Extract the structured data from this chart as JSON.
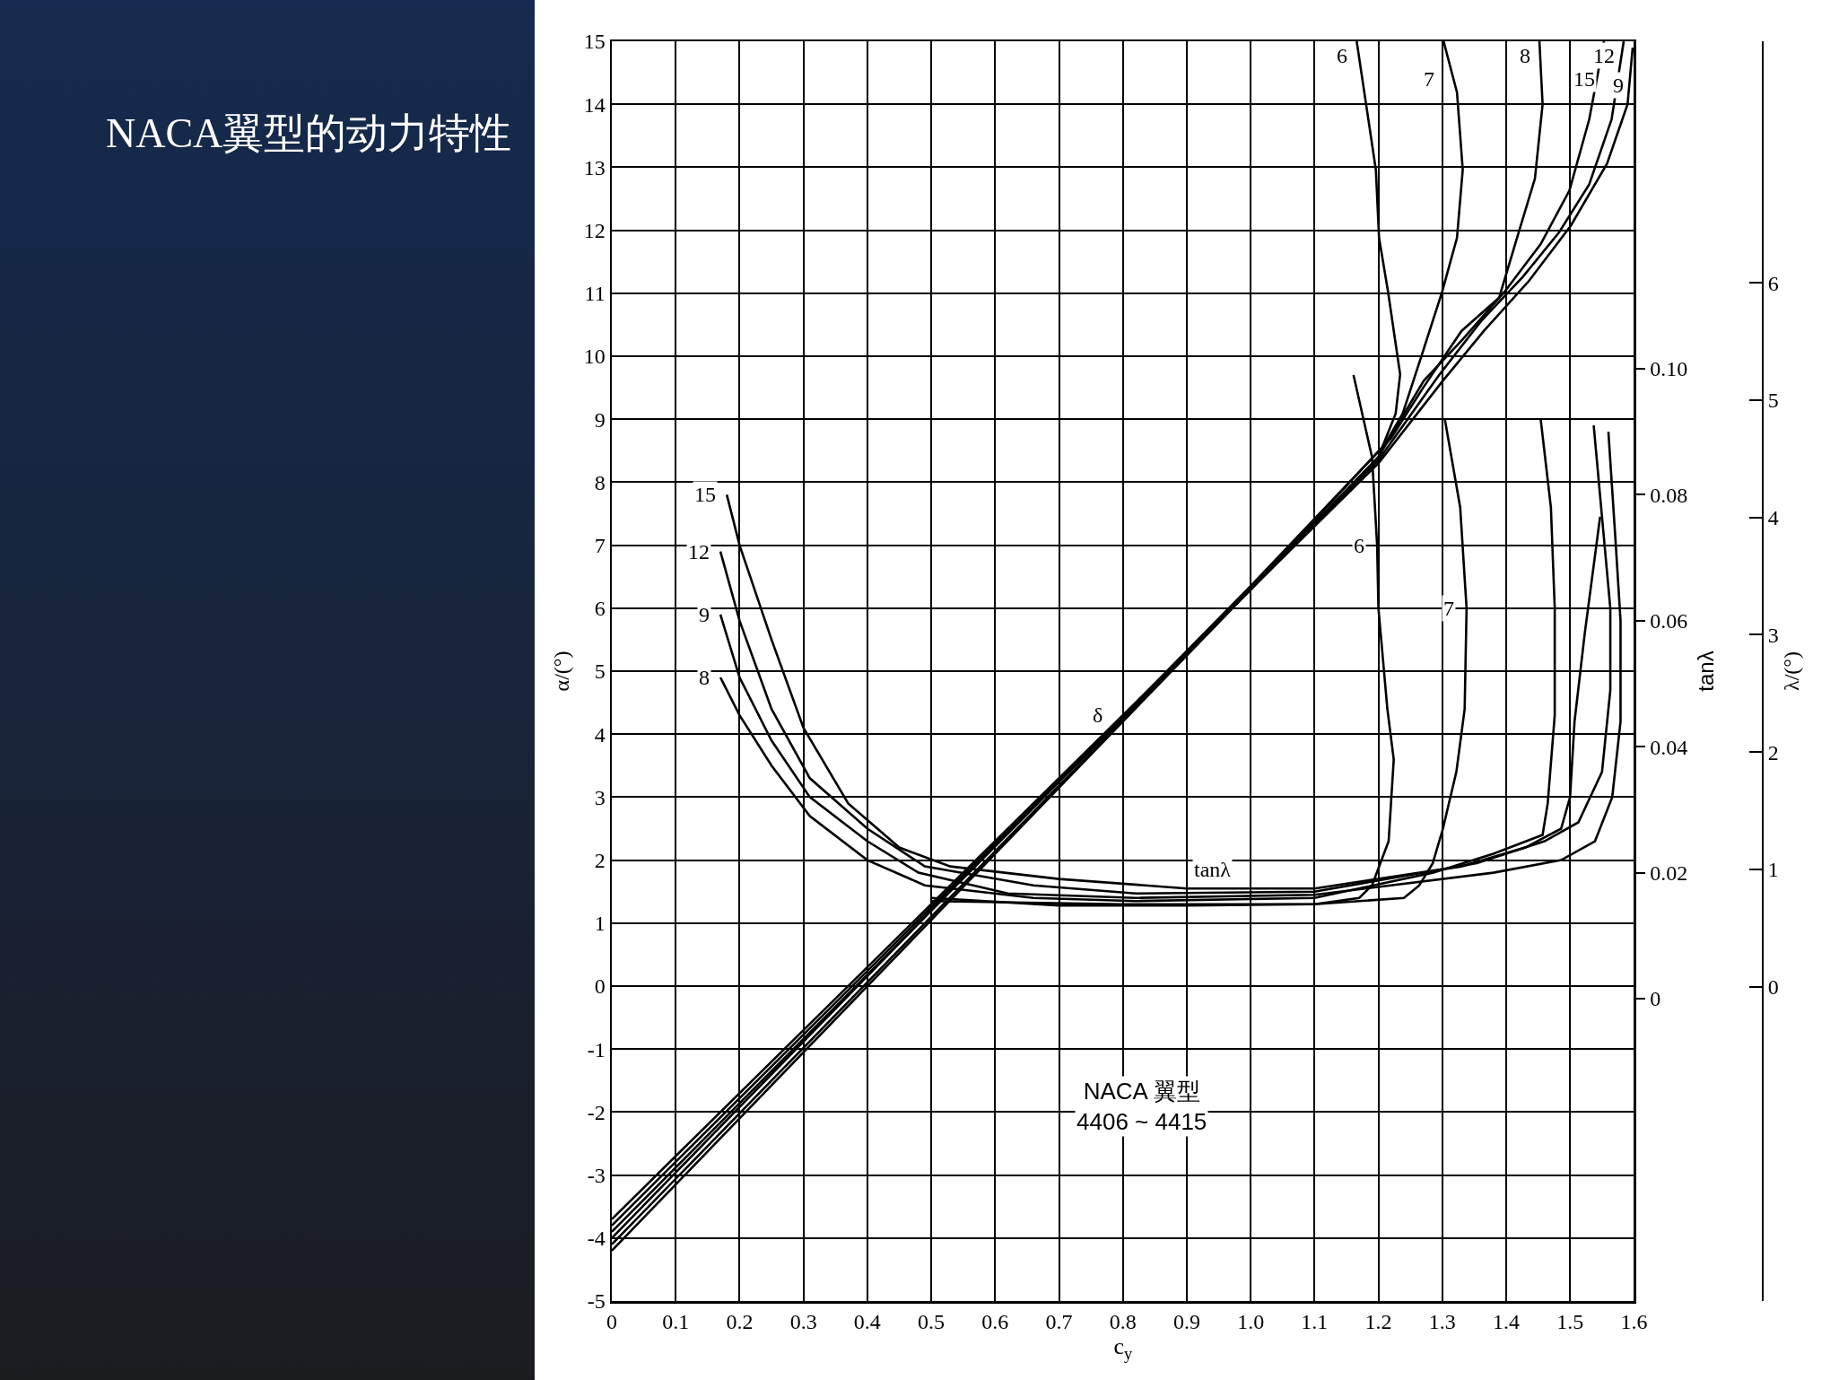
{
  "chart_data": {
    "type": "line",
    "title": "NACA翼型的动力特性",
    "xlabel": "c$_{y}$",
    "ylabel": "α/(°)",
    "y2label": "tanλ",
    "y3label": "λ/(°)",
    "xlim": [
      0,
      1.6
    ],
    "xticks": [
      0,
      0.1,
      0.2,
      0.3,
      0.4,
      0.5,
      0.6,
      0.7,
      0.8,
      0.9,
      {
        "value": 1,
        "label": "1.0"
      },
      1.1,
      1.2,
      1.3,
      1.4,
      1.5,
      1.6
    ],
    "ylim": [
      -5,
      15
    ],
    "yticks": [
      -5,
      -4,
      -3,
      -2,
      -1,
      0,
      1,
      2,
      3,
      4,
      5,
      6,
      7,
      8,
      9,
      10,
      11,
      12,
      13,
      14,
      15
    ],
    "y2lim": [
      -0.048,
      0.152
    ],
    "y2ticks": [
      0,
      0.02,
      0.04,
      0.06,
      0.08,
      {
        "value": 0.1,
        "label": "0.10"
      }
    ],
    "y3lim": [
      -2.68,
      8.06
    ],
    "y3ticks": [
      0,
      1,
      2,
      3,
      4,
      5,
      6
    ],
    "grid": true,
    "line_style": "solid",
    "series": [
      {
        "name": "6",
        "color": "#000000",
        "x": [
          0,
          0.5,
          1.0,
          1.2,
          1.227,
          1.234,
          1.215,
          1.201,
          1.196,
          1.166
        ],
        "values": [
          -4.2,
          1.05,
          6.3,
          8.4,
          9.09,
          9.71,
          11.03,
          11.88,
          12.96,
          15.0
        ]
      },
      {
        "name": "7",
        "color": "#000000",
        "x": [
          0,
          0.5,
          1.0,
          1.21,
          1.238,
          1.267,
          1.3,
          1.323,
          1.332,
          1.323,
          1.302
        ],
        "values": [
          -4.1,
          1.1,
          6.3,
          8.6,
          9.09,
          9.99,
          11.03,
          11.88,
          12.96,
          14.19,
          15.0
        ]
      },
      {
        "name": "8",
        "color": "#000000",
        "x": [
          0,
          0.5,
          1.0,
          1.22,
          1.27,
          1.33,
          1.389,
          1.417,
          1.445,
          1.457,
          1.452
        ],
        "values": [
          -4.0,
          1.2,
          6.35,
          8.7,
          9.5,
          10.4,
          10.93,
          11.88,
          12.82,
          14.0,
          15.0
        ]
      },
      {
        "name": "9",
        "color": "#000000",
        "x": [
          0,
          0.5,
          1.0,
          1.2,
          1.3,
          1.365,
          1.436,
          1.501,
          1.558,
          1.59,
          1.598
        ],
        "values": [
          -3.7,
          1.3,
          6.3,
          8.3,
          9.6,
          10.4,
          11.2,
          12.07,
          13.06,
          14.0,
          14.9
        ]
      },
      {
        "name": "12",
        "color": "#000000",
        "x": [
          0,
          0.5,
          1.0,
          1.2,
          1.295,
          1.361,
          1.426,
          1.483,
          1.53,
          1.565,
          1.584
        ],
        "values": [
          -3.8,
          1.25,
          6.3,
          8.35,
          9.7,
          10.56,
          11.26,
          11.97,
          12.73,
          13.76,
          15.0
        ]
      },
      {
        "name": "15",
        "color": "#000000",
        "x": [
          0,
          0.5,
          1.0,
          1.2,
          1.271,
          1.332,
          1.398,
          1.454,
          1.499,
          1.53,
          1.553
        ],
        "values": [
          -3.9,
          1.2,
          6.3,
          8.4,
          9.61,
          10.27,
          11.03,
          11.78,
          12.63,
          13.76,
          15.0
        ]
      },
      {
        "name": "6",
        "color": "#000000",
        "axis": "y2",
        "x": [
          0.5,
          0.7,
          0.9,
          1.1,
          1.17,
          1.19,
          1.216,
          1.224,
          1.214,
          1.2,
          1.198,
          1.19,
          1.161
        ],
        "values": [
          0.016,
          0.0148,
          0.0148,
          0.015,
          0.016,
          0.018,
          0.025,
          0.038,
          0.046,
          0.062,
          0.072,
          0.086,
          0.099
        ]
      },
      {
        "name": "7",
        "color": "#000000",
        "axis": "y2",
        "x": [
          0.5,
          0.8,
          1.1,
          1.24,
          1.264,
          1.285,
          1.301,
          1.322,
          1.335,
          1.338,
          1.328,
          1.304
        ],
        "values": [
          0.0155,
          0.015,
          0.015,
          0.016,
          0.018,
          0.0215,
          0.027,
          0.036,
          0.046,
          0.062,
          0.078,
          0.092
        ]
      },
      {
        "name": "8",
        "color": "#000000",
        "axis": "y2",
        "x": [
          0.17,
          0.2,
          0.25,
          0.31,
          0.4,
          0.49,
          0.66,
          0.82,
          1.1,
          1.285,
          1.38,
          1.457,
          1.465,
          1.476,
          1.476,
          1.47,
          1.454
        ],
        "values": [
          0.051,
          0.045,
          0.037,
          0.029,
          0.022,
          0.018,
          0.016,
          0.0155,
          0.016,
          0.02,
          0.023,
          0.026,
          0.031,
          0.045,
          0.062,
          0.078,
          0.092
        ]
      },
      {
        "name": "9",
        "color": "#000000",
        "axis": "y2",
        "x": [
          0.17,
          0.2,
          0.25,
          0.31,
          0.4,
          0.48,
          0.62,
          0.82,
          1.1,
          1.38,
          1.486,
          1.539,
          1.566,
          1.579,
          1.579,
          1.571,
          1.56
        ],
        "values": [
          0.061,
          0.051,
          0.041,
          0.032,
          0.025,
          0.02,
          0.0167,
          0.016,
          0.0165,
          0.02,
          0.022,
          0.025,
          0.032,
          0.044,
          0.06,
          0.073,
          0.09
        ]
      },
      {
        "name": "12",
        "color": "#000000",
        "axis": "y2",
        "x": [
          0.17,
          0.2,
          0.25,
          0.31,
          0.4,
          0.49,
          0.66,
          0.82,
          1.1,
          1.354,
          1.46,
          1.513,
          1.55,
          1.563,
          1.563,
          1.55,
          1.537
        ],
        "values": [
          0.071,
          0.06,
          0.046,
          0.035,
          0.027,
          0.021,
          0.018,
          0.0167,
          0.017,
          0.0215,
          0.025,
          0.028,
          0.036,
          0.049,
          0.062,
          0.0765,
          0.091
        ]
      },
      {
        "name": "15",
        "color": "#000000",
        "axis": "y2",
        "x": [
          0.18,
          0.2,
          0.25,
          0.3,
          0.37,
          0.45,
          0.53,
          0.7,
          0.9,
          1.1,
          1.33,
          1.43,
          1.486,
          1.5,
          1.507,
          1.523,
          1.547
        ],
        "values": [
          0.08,
          0.072,
          0.057,
          0.043,
          0.031,
          0.024,
          0.021,
          0.019,
          0.0175,
          0.0175,
          0.021,
          0.024,
          0.027,
          0.032,
          0.044,
          0.058,
          0.0765
        ]
      }
    ],
    "annotations": [
      {
        "text": "δ",
        "x": 0.76,
        "y": 4.3
      },
      {
        "text": "tanλ",
        "x": 0.94,
        "y": 1.85
      },
      "NACA 翼型\n4406 ~ 4415"
    ]
  }
}
